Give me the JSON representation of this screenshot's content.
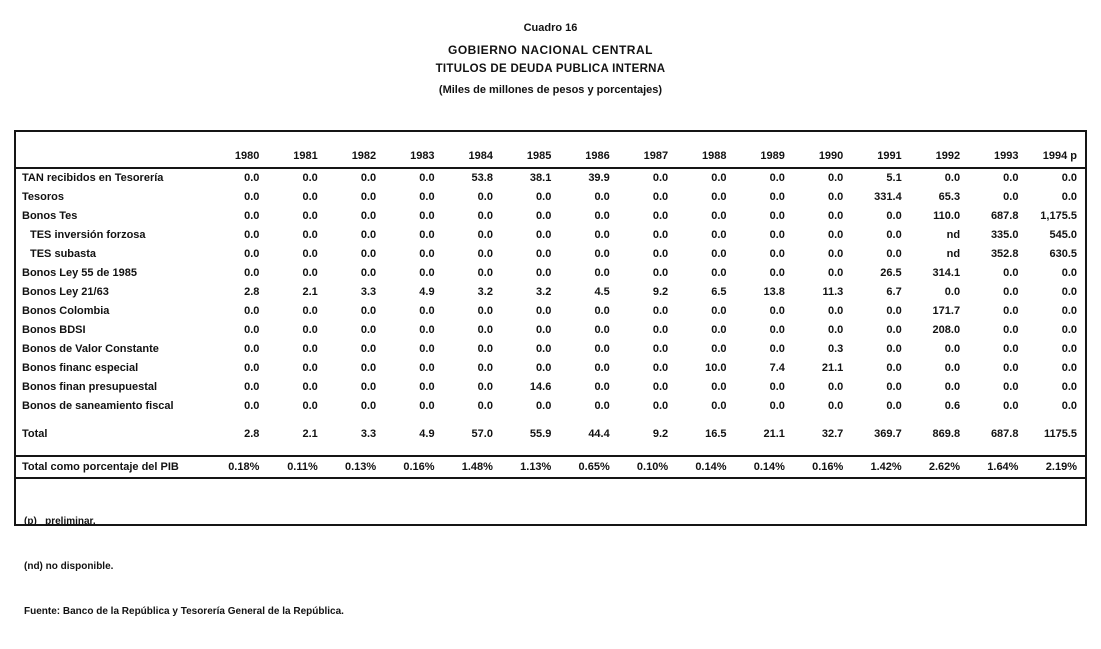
{
  "page": {
    "cuadro_label": "Cuadro 16",
    "title": "GOBIERNO NACIONAL CENTRAL",
    "subtitle": "TITULOS DE DEUDA PUBLICA INTERNA",
    "units_note": "(Miles de millones de pesos y porcentajes)"
  },
  "chart_data": {
    "type": "table",
    "columns": [
      "1980",
      "1981",
      "1982",
      "1983",
      "1984",
      "1985",
      "1986",
      "1987",
      "1988",
      "1989",
      "1990",
      "1991",
      "1992",
      "1993",
      "1994 p"
    ],
    "rows": [
      {
        "label": "TAN recibidos en Tesorería",
        "indent": false,
        "values": [
          "0.0",
          "0.0",
          "0.0",
          "0.0",
          "53.8",
          "38.1",
          "39.9",
          "0.0",
          "0.0",
          "0.0",
          "0.0",
          "5.1",
          "0.0",
          "0.0",
          "0.0"
        ]
      },
      {
        "label": "Tesoros",
        "indent": false,
        "values": [
          "0.0",
          "0.0",
          "0.0",
          "0.0",
          "0.0",
          "0.0",
          "0.0",
          "0.0",
          "0.0",
          "0.0",
          "0.0",
          "331.4",
          "65.3",
          "0.0",
          "0.0"
        ]
      },
      {
        "label": "Bonos Tes",
        "indent": false,
        "values": [
          "0.0",
          "0.0",
          "0.0",
          "0.0",
          "0.0",
          "0.0",
          "0.0",
          "0.0",
          "0.0",
          "0.0",
          "0.0",
          "0.0",
          "110.0",
          "687.8",
          "1,175.5"
        ]
      },
      {
        "label": "TES inversión forzosa",
        "indent": true,
        "values": [
          "0.0",
          "0.0",
          "0.0",
          "0.0",
          "0.0",
          "0.0",
          "0.0",
          "0.0",
          "0.0",
          "0.0",
          "0.0",
          "0.0",
          "nd",
          "335.0",
          "545.0"
        ]
      },
      {
        "label": "TES subasta",
        "indent": true,
        "values": [
          "0.0",
          "0.0",
          "0.0",
          "0.0",
          "0.0",
          "0.0",
          "0.0",
          "0.0",
          "0.0",
          "0.0",
          "0.0",
          "0.0",
          "nd",
          "352.8",
          "630.5"
        ]
      },
      {
        "label": "Bonos Ley 55 de 1985",
        "indent": false,
        "values": [
          "0.0",
          "0.0",
          "0.0",
          "0.0",
          "0.0",
          "0.0",
          "0.0",
          "0.0",
          "0.0",
          "0.0",
          "0.0",
          "26.5",
          "314.1",
          "0.0",
          "0.0"
        ]
      },
      {
        "label": "Bonos Ley 21/63",
        "indent": false,
        "values": [
          "2.8",
          "2.1",
          "3.3",
          "4.9",
          "3.2",
          "3.2",
          "4.5",
          "9.2",
          "6.5",
          "13.8",
          "11.3",
          "6.7",
          "0.0",
          "0.0",
          "0.0"
        ]
      },
      {
        "label": "Bonos Colombia",
        "indent": false,
        "values": [
          "0.0",
          "0.0",
          "0.0",
          "0.0",
          "0.0",
          "0.0",
          "0.0",
          "0.0",
          "0.0",
          "0.0",
          "0.0",
          "0.0",
          "171.7",
          "0.0",
          "0.0"
        ]
      },
      {
        "label": "Bonos BDSI",
        "indent": false,
        "values": [
          "0.0",
          "0.0",
          "0.0",
          "0.0",
          "0.0",
          "0.0",
          "0.0",
          "0.0",
          "0.0",
          "0.0",
          "0.0",
          "0.0",
          "208.0",
          "0.0",
          "0.0"
        ]
      },
      {
        "label": "Bonos de Valor Constante",
        "indent": false,
        "values": [
          "0.0",
          "0.0",
          "0.0",
          "0.0",
          "0.0",
          "0.0",
          "0.0",
          "0.0",
          "0.0",
          "0.0",
          "0.3",
          "0.0",
          "0.0",
          "0.0",
          "0.0"
        ]
      },
      {
        "label": "Bonos financ especial",
        "indent": false,
        "values": [
          "0.0",
          "0.0",
          "0.0",
          "0.0",
          "0.0",
          "0.0",
          "0.0",
          "0.0",
          "10.0",
          "7.4",
          "21.1",
          "0.0",
          "0.0",
          "0.0",
          "0.0"
        ]
      },
      {
        "label": "Bonos finan presupuestal",
        "indent": false,
        "values": [
          "0.0",
          "0.0",
          "0.0",
          "0.0",
          "0.0",
          "14.6",
          "0.0",
          "0.0",
          "0.0",
          "0.0",
          "0.0",
          "0.0",
          "0.0",
          "0.0",
          "0.0"
        ]
      },
      {
        "label": "Bonos de saneamiento fiscal",
        "indent": false,
        "values": [
          "0.0",
          "0.0",
          "0.0",
          "0.0",
          "0.0",
          "0.0",
          "0.0",
          "0.0",
          "0.0",
          "0.0",
          "0.0",
          "0.0",
          "0.6",
          "0.0",
          "0.0"
        ]
      }
    ],
    "total_row": {
      "label": "Total",
      "values": [
        "2.8",
        "2.1",
        "3.3",
        "4.9",
        "57.0",
        "55.9",
        "44.4",
        "9.2",
        "16.5",
        "21.1",
        "32.7",
        "369.7",
        "869.8",
        "687.8",
        "1175.5"
      ]
    },
    "pib_row": {
      "label": "Total como porcentaje del PIB",
      "values": [
        "0.18%",
        "0.11%",
        "0.13%",
        "0.16%",
        "1.48%",
        "1.13%",
        "0.65%",
        "0.10%",
        "0.14%",
        "0.14%",
        "0.16%",
        "1.42%",
        "2.62%",
        "1.64%",
        "2.19%"
      ]
    }
  },
  "footnotes": {
    "p": "(p)   preliminar.",
    "nd": "(nd) no disponible.",
    "fuente": "Fuente: Banco de la República y Tesorería General de la República."
  }
}
